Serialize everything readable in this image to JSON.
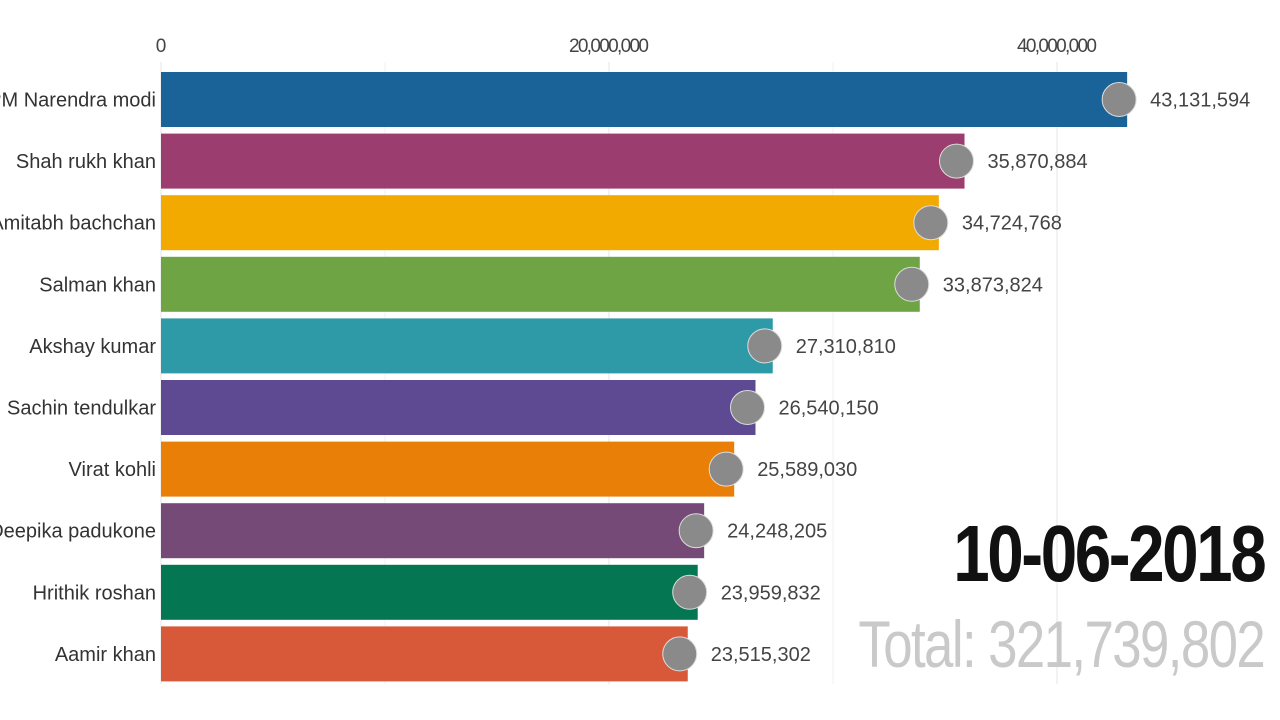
{
  "chart_data": {
    "type": "bar",
    "orientation": "horizontal",
    "categories": [
      "PM Narendra modi",
      "Shah rukh khan",
      "Amitabh bachchan",
      "Salman khan",
      "Akshay kumar",
      "Sachin tendulkar",
      "Virat kohli",
      "Deepika padukone",
      "Hrithik roshan",
      "Aamir khan"
    ],
    "values": [
      43131594,
      35870884,
      34724768,
      33873824,
      27310810,
      26540150,
      25589030,
      24248205,
      23959832,
      23515302
    ],
    "value_labels": [
      "43,131,594",
      "35,870,884",
      "34,724,768",
      "33,873,824",
      "27,310,810",
      "26,540,150",
      "25,589,030",
      "24,248,205",
      "23,959,832",
      "23,515,302"
    ],
    "colors": [
      "#1a6399",
      "#9b3d6e",
      "#f2aa00",
      "#6fa445",
      "#2e9aa8",
      "#5e4a93",
      "#e97f06",
      "#764a77",
      "#047651",
      "#d8583a"
    ],
    "xlim": [
      0,
      46000000
    ],
    "x_ticks": [
      0,
      20000000,
      40000000
    ],
    "x_tick_labels": [
      "0",
      "20,000,000",
      "40,000,000"
    ],
    "axis_position": "top",
    "grid": true,
    "avatars": true
  },
  "date": "10-06-2018",
  "total": "Total: 321,739,802"
}
